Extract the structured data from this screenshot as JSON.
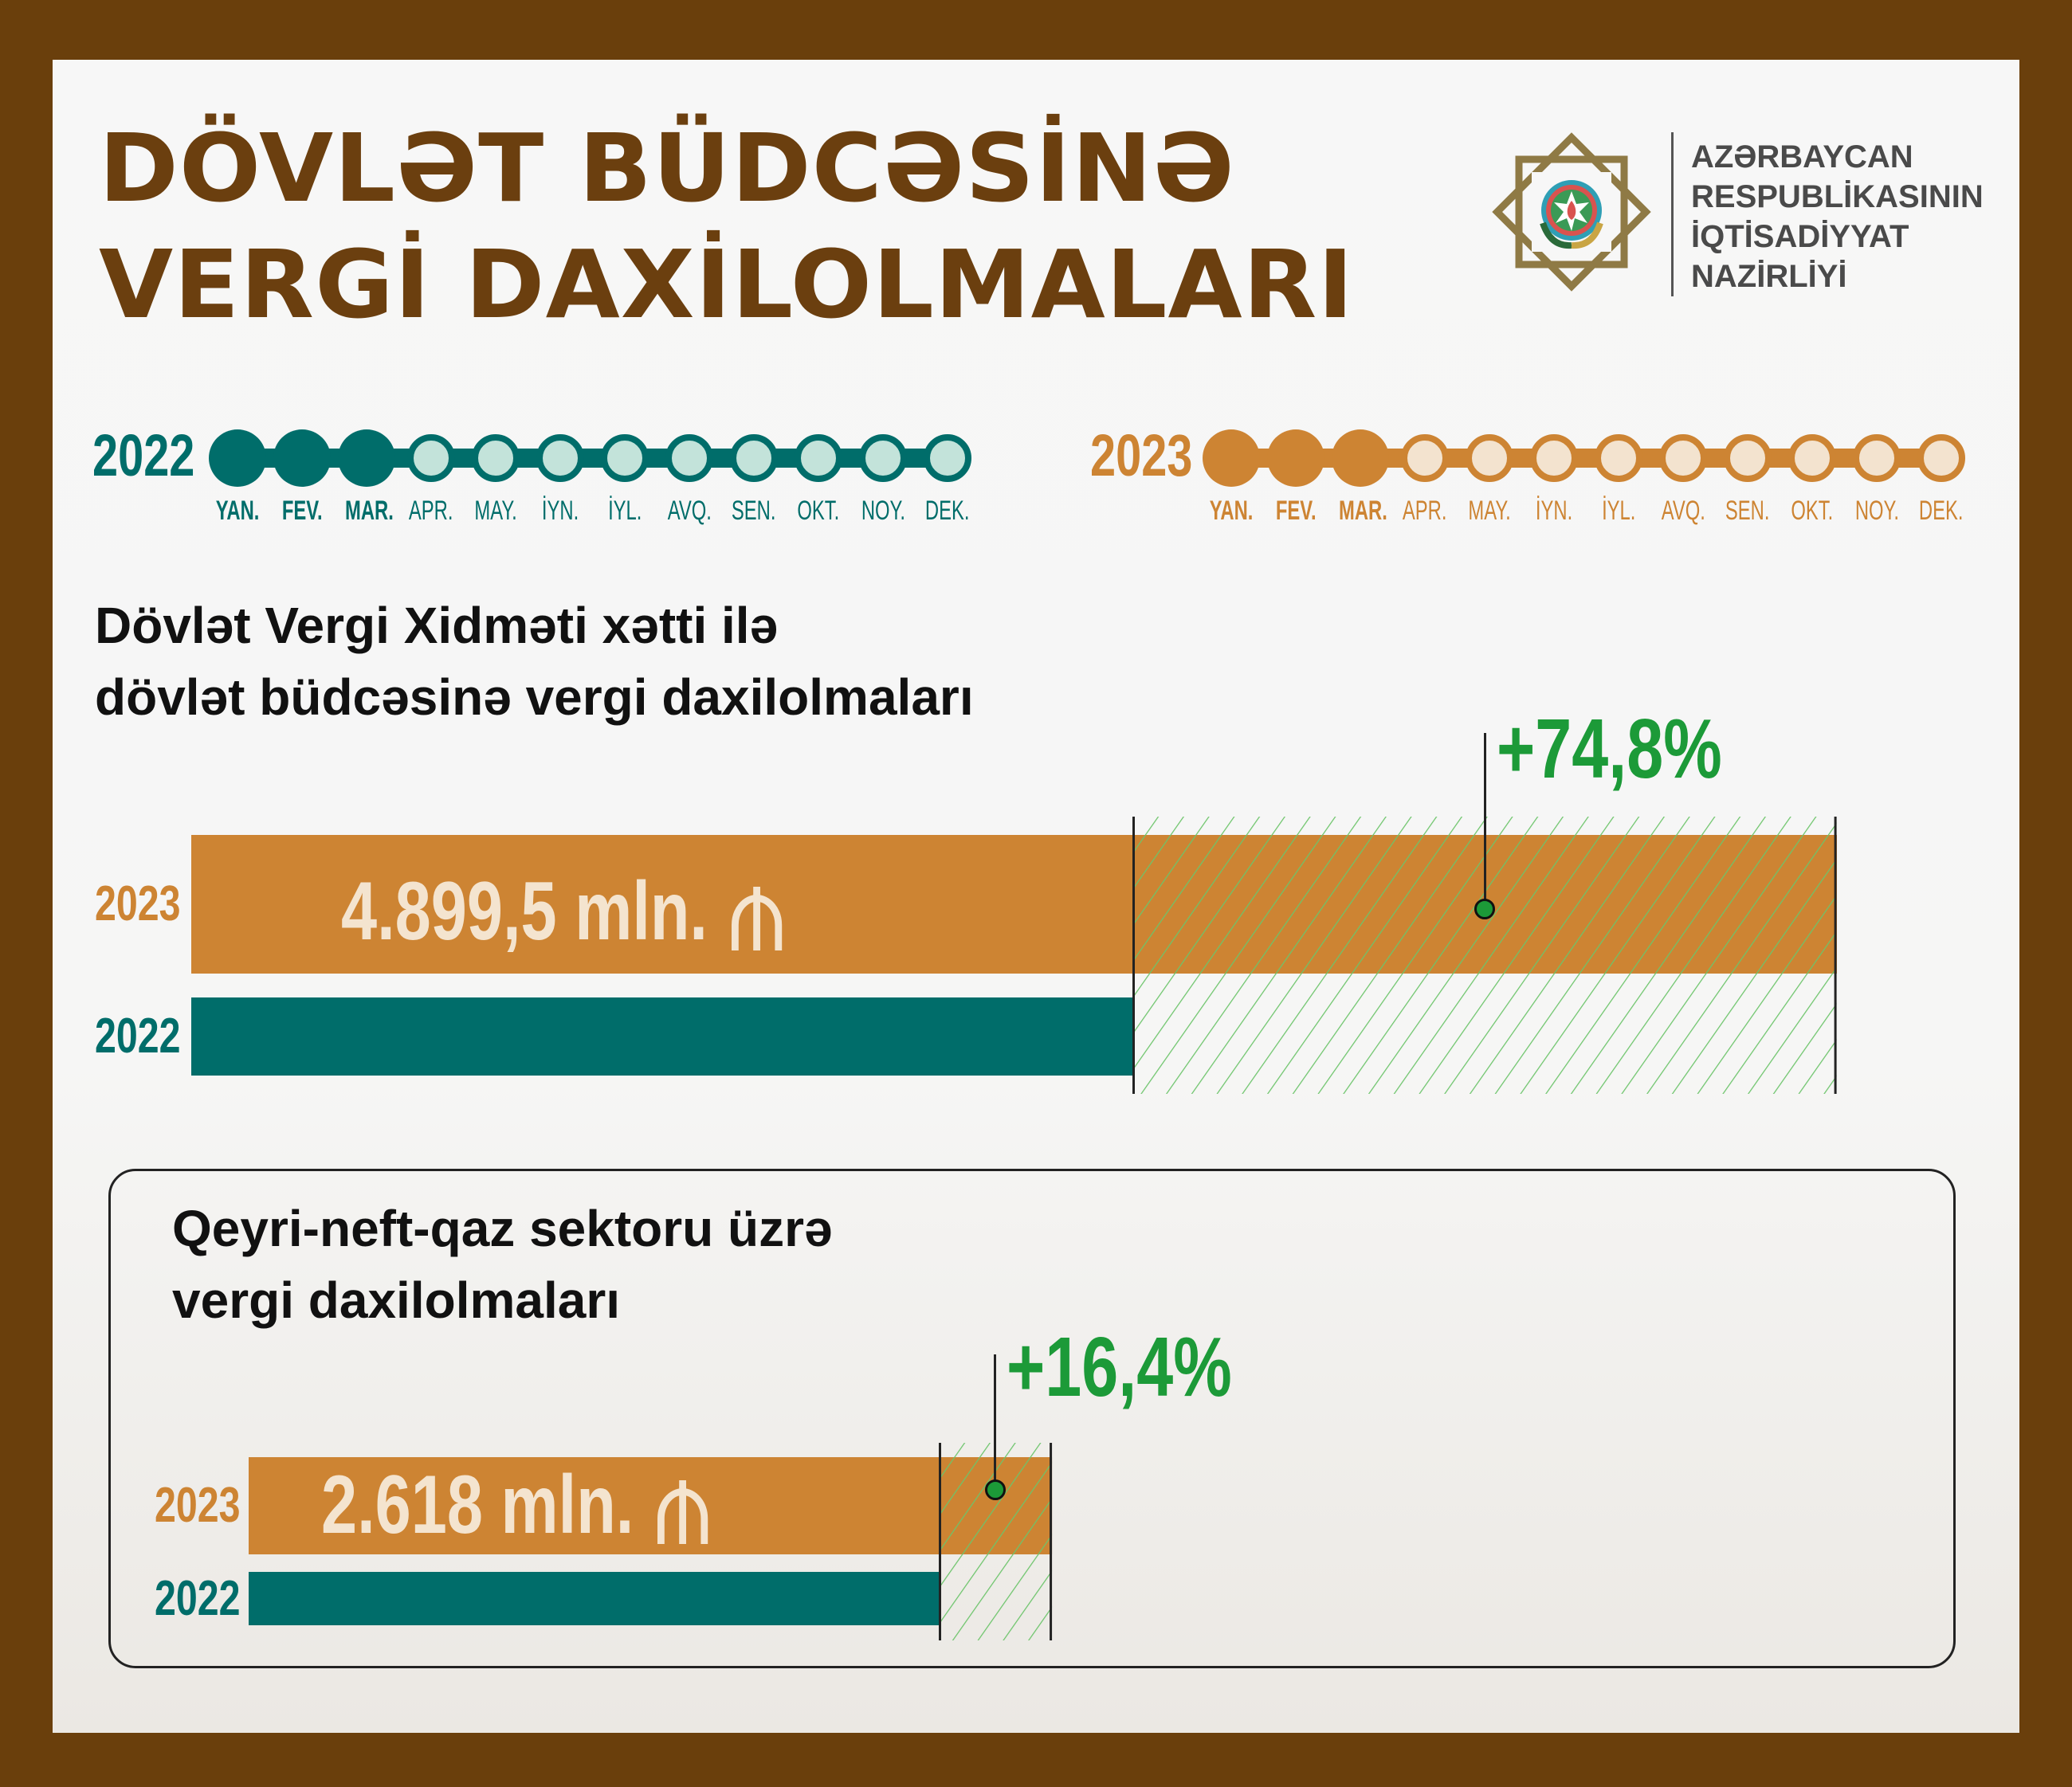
{
  "title": {
    "line1": "DÖVLƏT BÜDCƏSİNƏ",
    "line2": "VERGİ DAXİLOLMALARI"
  },
  "ministry": {
    "lines": [
      "AZƏRBAYCAN",
      "RESPUBLİKASININ",
      "İQTİSADİYYAT",
      "NAZİRLİYİ"
    ],
    "logo": "state-emblem-ornament-logo"
  },
  "colors": {
    "frame": "#6a3f0c",
    "title": "#6b3f0f",
    "teal": "#006d6a",
    "teal_light": "#c3e3da",
    "orange": "#cd8433",
    "orange_light": "#f3e3cf",
    "green": "#1c9a38"
  },
  "timeline": {
    "months": [
      "YAN.",
      "FEV.",
      "MAR.",
      "APR.",
      "MAY.",
      "İYN.",
      "İYL.",
      "AVQ.",
      "SEN.",
      "OKT.",
      "NOY.",
      "DEK."
    ],
    "months_covered": 3,
    "years": [
      {
        "label": "2022",
        "color": "#006d6a",
        "light": "#c3e3da"
      },
      {
        "label": "2023",
        "color": "#cd8433",
        "light": "#f3e3cf"
      }
    ]
  },
  "section1": {
    "heading_line1": "Dövlət Vergi Xidməti xətti ilə",
    "heading_line2": "dövlət büdcəsinə vergi daxilolmaları"
  },
  "section2": {
    "heading_line1": "Qeyri-neft-qaz sektoru üzrə",
    "heading_line2": "vergi daxilolmaları"
  },
  "chart_data": [
    {
      "type": "bar",
      "orientation": "horizontal",
      "categories": [
        "2023",
        "2022"
      ],
      "values": [
        4899.5,
        2803
      ],
      "unit": "mln. ₼",
      "value_label": "4.899,5 mln.",
      "change_label": "+74,8%",
      "change_percent": 74.8
    },
    {
      "type": "bar",
      "orientation": "horizontal",
      "categories": [
        "2023",
        "2022"
      ],
      "values": [
        2618,
        2249
      ],
      "unit": "mln. ₼",
      "value_label": "2.618 mln.",
      "change_label": "+16,4%",
      "change_percent": 16.4
    }
  ]
}
